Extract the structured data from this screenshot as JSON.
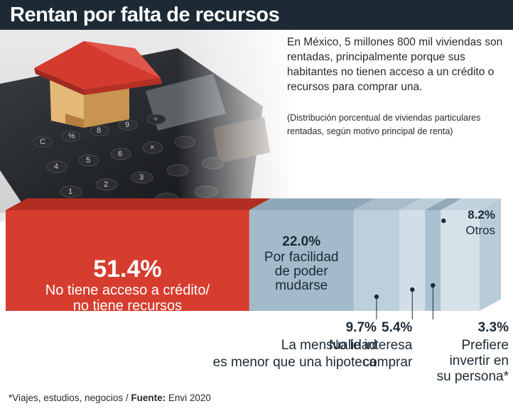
{
  "title": "Rentan por falta de recursos",
  "intro": "En México, 5 millones 800 mil viviendas son rentadas, principalmente porque sus habitantes no tienen acceso a un crédito o recursos para comprar una.",
  "note": "(Distribución porcentual de viviendas particulares rentadas, según motivo principal de renta)",
  "footer": {
    "note": "*Viajes, estudios, negocios / ",
    "source_label": "Fuente:",
    "source": " Envi 2020"
  },
  "colors": {
    "primary": "#d63d2f",
    "secondary": "#a4bccb",
    "light": "#c9d9e2",
    "dark_bar": "#1d2a35"
  },
  "chart_data": {
    "type": "bar",
    "orientation": "horizontal-stacked",
    "categories": [
      "No tiene acceso a crédito/ no tiene recursos",
      "Por facilidad de poder mudarse",
      "La mensualidad es menor que una hipoteca",
      "No le interesa comprar",
      "Prefiere invertir en su persona*",
      "Otros"
    ],
    "values": [
      51.4,
      22.0,
      9.7,
      5.4,
      3.3,
      8.2
    ],
    "value_labels": [
      "51.4%",
      "22.0%",
      "9.7%",
      "5.4%",
      "3.3%",
      "8.2%"
    ],
    "label_lines": [
      [
        "No tiene acceso a crédito/",
        "no tiene recursos"
      ],
      [
        "Por facilidad",
        "de poder",
        "mudarse"
      ],
      [
        "La mensualidad",
        "es menor que una hipoteca"
      ],
      [
        "No le interesa",
        "comprar"
      ],
      [
        "Prefiere",
        "invertir en",
        "su persona*"
      ],
      [
        "Otros"
      ]
    ],
    "unit": "%"
  }
}
